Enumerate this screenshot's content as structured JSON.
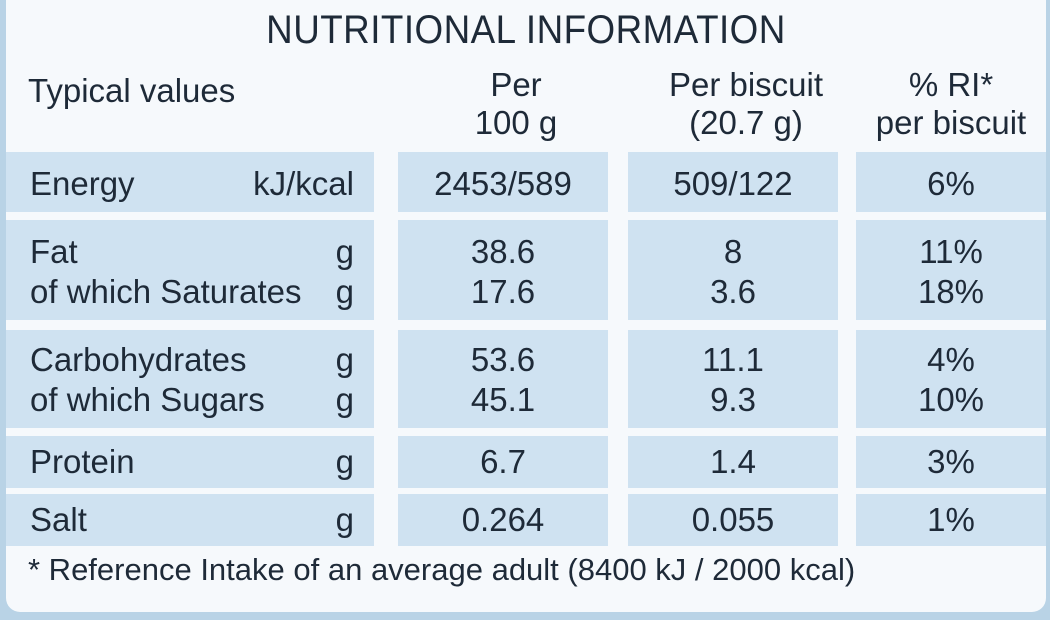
{
  "title": "NUTRITIONAL INFORMATION",
  "headers": {
    "typical": "Typical values",
    "per100_line1": "Per",
    "per100_line2": "100 g",
    "perbiscuit_line1": "Per biscuit",
    "perbiscuit_line2": "(20.7 g)",
    "ri_line1": "% RI*",
    "ri_line2": "per biscuit"
  },
  "rows": [
    {
      "labels": [
        "Energy"
      ],
      "units": [
        "kJ/kcal"
      ],
      "per100": [
        "2453/589"
      ],
      "perbiscuit": [
        "509/122"
      ],
      "ri": [
        "6%"
      ]
    },
    {
      "labels": [
        "Fat",
        "of which Saturates"
      ],
      "units": [
        "g",
        "g"
      ],
      "per100": [
        "38.6",
        "17.6"
      ],
      "perbiscuit": [
        "8",
        "3.6"
      ],
      "ri": [
        "11%",
        "18%"
      ]
    },
    {
      "labels": [
        "Carbohydrates",
        "of which Sugars"
      ],
      "units": [
        "g",
        "g"
      ],
      "per100": [
        "53.6",
        "45.1"
      ],
      "perbiscuit": [
        "11.1",
        "9.3"
      ],
      "ri": [
        "4%",
        "10%"
      ]
    },
    {
      "labels": [
        "Protein"
      ],
      "units": [
        "g"
      ],
      "per100": [
        "6.7"
      ],
      "perbiscuit": [
        "1.4"
      ],
      "ri": [
        "3%"
      ]
    },
    {
      "labels": [
        "Salt"
      ],
      "units": [
        "g"
      ],
      "per100": [
        "0.264"
      ],
      "perbiscuit": [
        "0.055"
      ],
      "ri": [
        "1%"
      ]
    }
  ],
  "footnote": "* Reference Intake of an average adult (8400 kJ / 2000 kcal)"
}
